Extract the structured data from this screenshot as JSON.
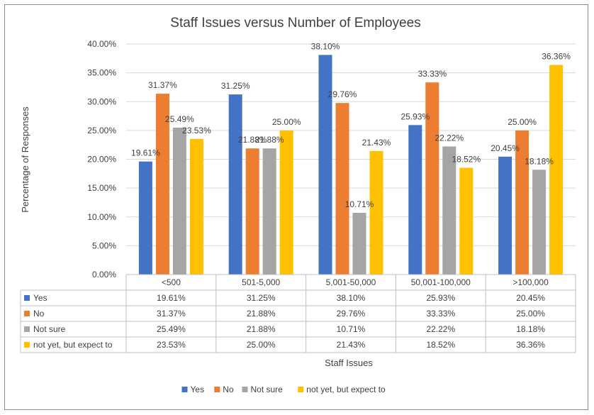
{
  "chart_data": {
    "type": "bar",
    "title": "Staff Issues versus Number of Employees",
    "xlabel": "Staff Issues",
    "ylabel": "Percentage of Responses",
    "ylim": [
      0,
      40
    ],
    "yticks": [
      "0.00%",
      "5.00%",
      "10.00%",
      "15.00%",
      "20.00%",
      "25.00%",
      "30.00%",
      "35.00%",
      "40.00%"
    ],
    "categories": [
      "<500",
      "501-5,000",
      "5,001-50,000",
      "50,001-100,000",
      ">100,000"
    ],
    "series": [
      {
        "name": "Yes",
        "color": "#4472c4",
        "values": [
          19.61,
          31.25,
          38.1,
          25.93,
          20.45
        ],
        "labels": [
          "19.61%",
          "31.25%",
          "38.10%",
          "25.93%",
          "20.45%"
        ]
      },
      {
        "name": "No",
        "color": "#ed7d31",
        "values": [
          31.37,
          21.88,
          29.76,
          33.33,
          25.0
        ],
        "labels": [
          "31.37%",
          "21.88%",
          "29.76%",
          "33.33%",
          "25.00%"
        ]
      },
      {
        "name": "Not sure",
        "color": "#a5a5a5",
        "values": [
          25.49,
          21.88,
          10.71,
          22.22,
          18.18
        ],
        "labels": [
          "25.49%",
          "21.88%",
          "10.71%",
          "22.22%",
          "18.18%"
        ]
      },
      {
        "name": "not yet, but expect to",
        "color": "#ffc000",
        "values": [
          23.53,
          25.0,
          21.43,
          18.52,
          36.36
        ],
        "labels": [
          "23.53%",
          "25.00%",
          "21.43%",
          "18.52%",
          "36.36%"
        ]
      }
    ],
    "grid": true,
    "legend": "bottom",
    "data_table": true
  }
}
